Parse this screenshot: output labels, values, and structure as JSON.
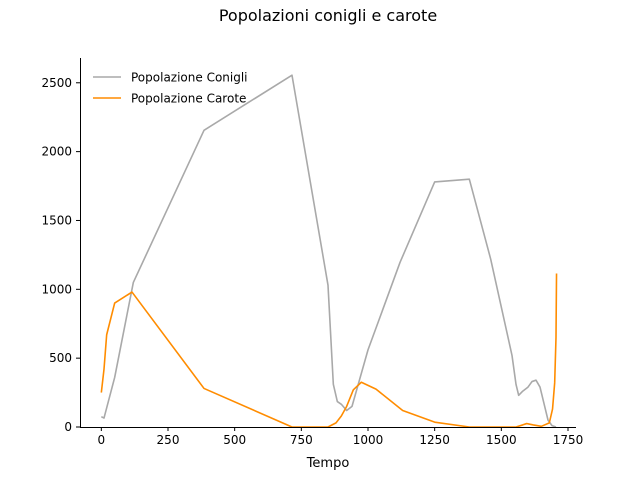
{
  "chart_data": {
    "type": "line",
    "title": "Popolazioni conigli e carote",
    "xlabel": "Tempo",
    "ylabel": "",
    "xlim": [
      -80,
      1780
    ],
    "ylim": [
      0,
      2680
    ],
    "xticks": [
      0,
      250,
      500,
      750,
      1000,
      1250,
      1500,
      1750
    ],
    "yticks": [
      0,
      500,
      1000,
      1500,
      2000,
      2500
    ],
    "grid": false,
    "legend_position": "top-left",
    "series": [
      {
        "name": "Popolazione Conigli",
        "color": "#a9a9a9",
        "points": [
          [
            0,
            75
          ],
          [
            10,
            65
          ],
          [
            50,
            360
          ],
          [
            120,
            1050
          ],
          [
            385,
            2155
          ],
          [
            715,
            2555
          ],
          [
            850,
            1030
          ],
          [
            870,
            310
          ],
          [
            885,
            185
          ],
          [
            900,
            165
          ],
          [
            920,
            120
          ],
          [
            940,
            150
          ],
          [
            1000,
            560
          ],
          [
            1120,
            1195
          ],
          [
            1250,
            1780
          ],
          [
            1380,
            1800
          ],
          [
            1460,
            1220
          ],
          [
            1540,
            520
          ],
          [
            1555,
            310
          ],
          [
            1565,
            230
          ],
          [
            1580,
            260
          ],
          [
            1600,
            290
          ],
          [
            1615,
            330
          ],
          [
            1630,
            340
          ],
          [
            1645,
            290
          ],
          [
            1660,
            170
          ],
          [
            1675,
            50
          ],
          [
            1690,
            10
          ],
          [
            1705,
            0
          ]
        ]
      },
      {
        "name": "Popolazione Carote",
        "color": "#ff8c00",
        "points": [
          [
            0,
            250
          ],
          [
            10,
            420
          ],
          [
            20,
            670
          ],
          [
            50,
            900
          ],
          [
            115,
            980
          ],
          [
            385,
            280
          ],
          [
            715,
            0
          ],
          [
            850,
            0
          ],
          [
            880,
            30
          ],
          [
            900,
            80
          ],
          [
            920,
            150
          ],
          [
            945,
            270
          ],
          [
            975,
            325
          ],
          [
            1030,
            275
          ],
          [
            1130,
            120
          ],
          [
            1250,
            35
          ],
          [
            1380,
            0
          ],
          [
            1500,
            0
          ],
          [
            1555,
            0
          ],
          [
            1580,
            15
          ],
          [
            1595,
            25
          ],
          [
            1620,
            15
          ],
          [
            1650,
            5
          ],
          [
            1680,
            30
          ],
          [
            1692,
            130
          ],
          [
            1700,
            320
          ],
          [
            1705,
            650
          ],
          [
            1707,
            1115
          ]
        ]
      }
    ]
  }
}
